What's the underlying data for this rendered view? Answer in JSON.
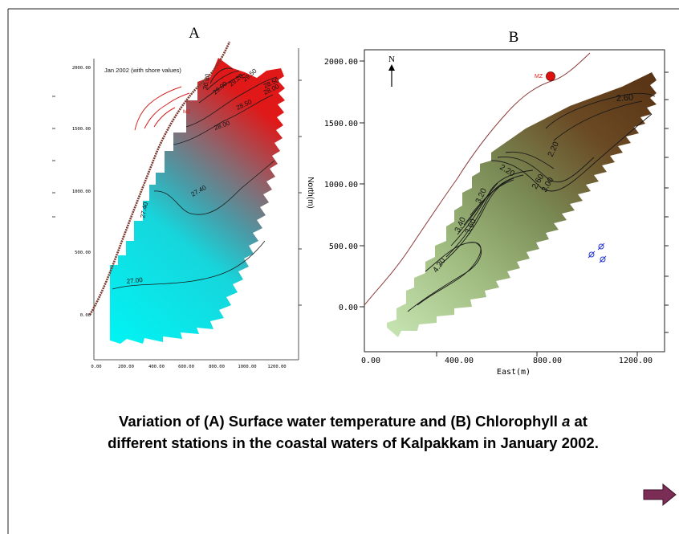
{
  "panel_a": {
    "letter": "A",
    "inner_title": "Jan 2002 (with shore values)",
    "marker_label": "MZ",
    "x_ticks": [
      "0.00",
      "200.00",
      "400.00",
      "600.00",
      "800.00",
      "1000.00",
      "1200.00"
    ],
    "y_ticks": [
      "0.00",
      "500.00",
      "1000.00",
      "1500.00",
      "2000.00"
    ],
    "contour_labels": [
      "27.00",
      "27.40",
      "27.40",
      "28.00",
      "28.50",
      "28.00",
      "28.50",
      "29.00",
      "29.20",
      "29.50",
      "30.00"
    ]
  },
  "panel_b": {
    "letter": "B",
    "north": "N",
    "marker_label": "MZ",
    "xlabel": "East(m)",
    "ylabel": "North(m)",
    "x_ticks": [
      "0.00",
      "400.00",
      "800.00",
      "1200.00"
    ],
    "y_ticks": [
      "0.00",
      "500.00",
      "1000.00",
      "1500.00",
      "2000.00"
    ],
    "contour_labels": [
      "2.60",
      "2.20",
      "2.20",
      "2.60",
      "3.00",
      "3.20",
      "3.40",
      "3.60",
      "4.20"
    ]
  },
  "caption": {
    "line1": "Variation of  (A) Surface water temperature and (B) Chlorophyll ",
    "line1_italic": "a",
    "line1_end": " at",
    "line2": "different stations in the coastal waters of Kalpakkam in January 2002."
  },
  "colors": {
    "warm": "#d42a2a",
    "cool": "#00f0f0",
    "chl_high": "#5a3a1a",
    "chl_low": "#c4e3b0",
    "shore": "#7a2a2a",
    "arrow": "#7b2d56"
  },
  "chart_data": [
    {
      "type": "heatmap",
      "title": "A",
      "subtitle": "Jan 2002 (with shore values)",
      "xlim": [
        0,
        1200
      ],
      "ylim": [
        0,
        2000
      ],
      "contour_levels": [
        27.0,
        27.4,
        28.0,
        28.5,
        29.0,
        29.2,
        29.5,
        30.0
      ],
      "colormap": [
        "#00f0f0",
        "#d42a2a"
      ],
      "marker": "MZ"
    },
    {
      "type": "heatmap",
      "title": "B",
      "xlabel": "East(m)",
      "ylabel": "North(m)",
      "xlim": [
        0,
        1300
      ],
      "ylim": [
        -200,
        2100
      ],
      "contour_levels": [
        2.2,
        2.6,
        3.0,
        3.2,
        3.4,
        3.6,
        4.2
      ],
      "colormap": [
        "#c4e3b0",
        "#5a3a1a"
      ],
      "marker": "MZ"
    }
  ]
}
